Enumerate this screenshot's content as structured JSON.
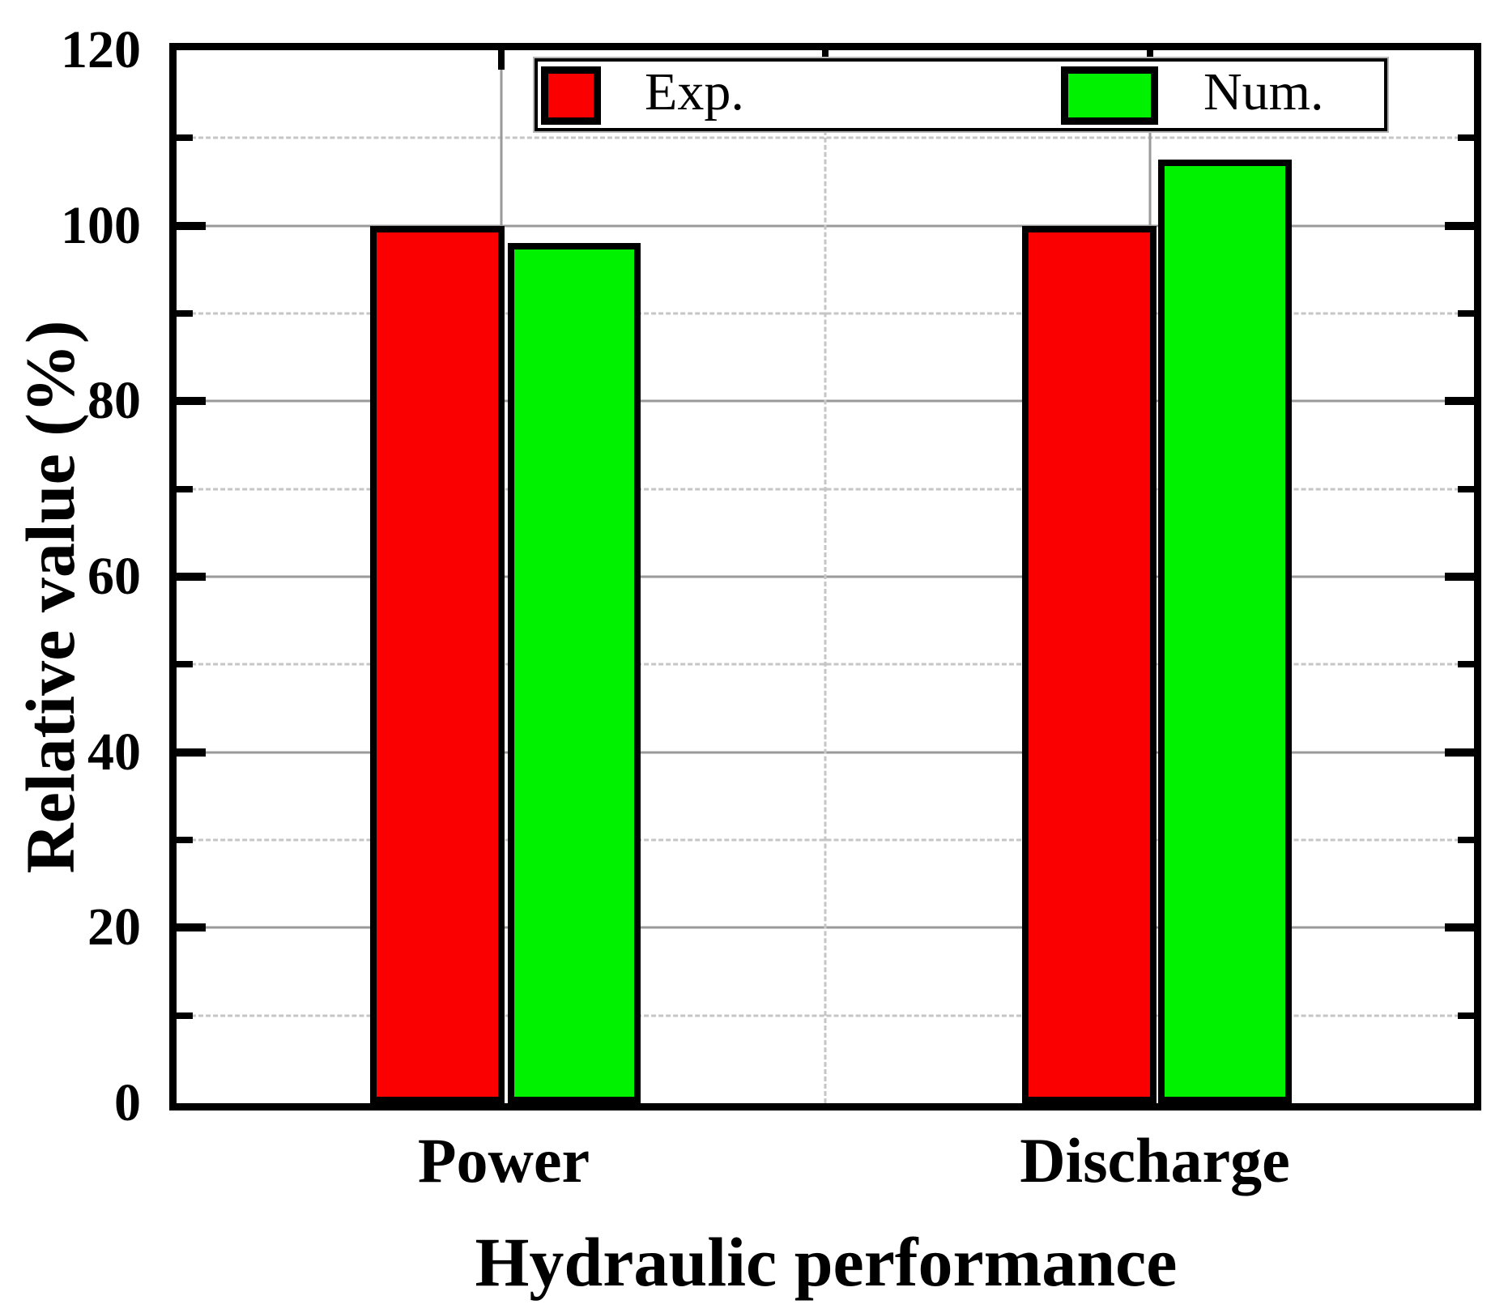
{
  "chart_data": {
    "type": "bar",
    "title": "",
    "xlabel": "Hydraulic performance",
    "ylabel": "Relative value (%)",
    "categories": [
      "Power",
      "Discharge"
    ],
    "series": [
      {
        "name": "Exp.",
        "color": "#fb0000",
        "values": [
          100,
          100
        ]
      },
      {
        "name": "Num.",
        "color": "#00f200",
        "values": [
          98,
          107.5
        ]
      }
    ],
    "ylim": [
      0,
      120
    ],
    "yticks": [
      0,
      20,
      40,
      60,
      80,
      100,
      120
    ],
    "yticks_minor": [
      10,
      30,
      50,
      70,
      90,
      110
    ],
    "grid": {
      "major_horizontal": "solid",
      "minor_horizontal": "dashed",
      "category_vertical": "solid",
      "mid_vertical": "dashed"
    },
    "legend_position": "top-inside",
    "axis_color": "#000000",
    "major_grid_color": "#9a9a9a",
    "minor_grid_color": "#c6c6c6"
  }
}
